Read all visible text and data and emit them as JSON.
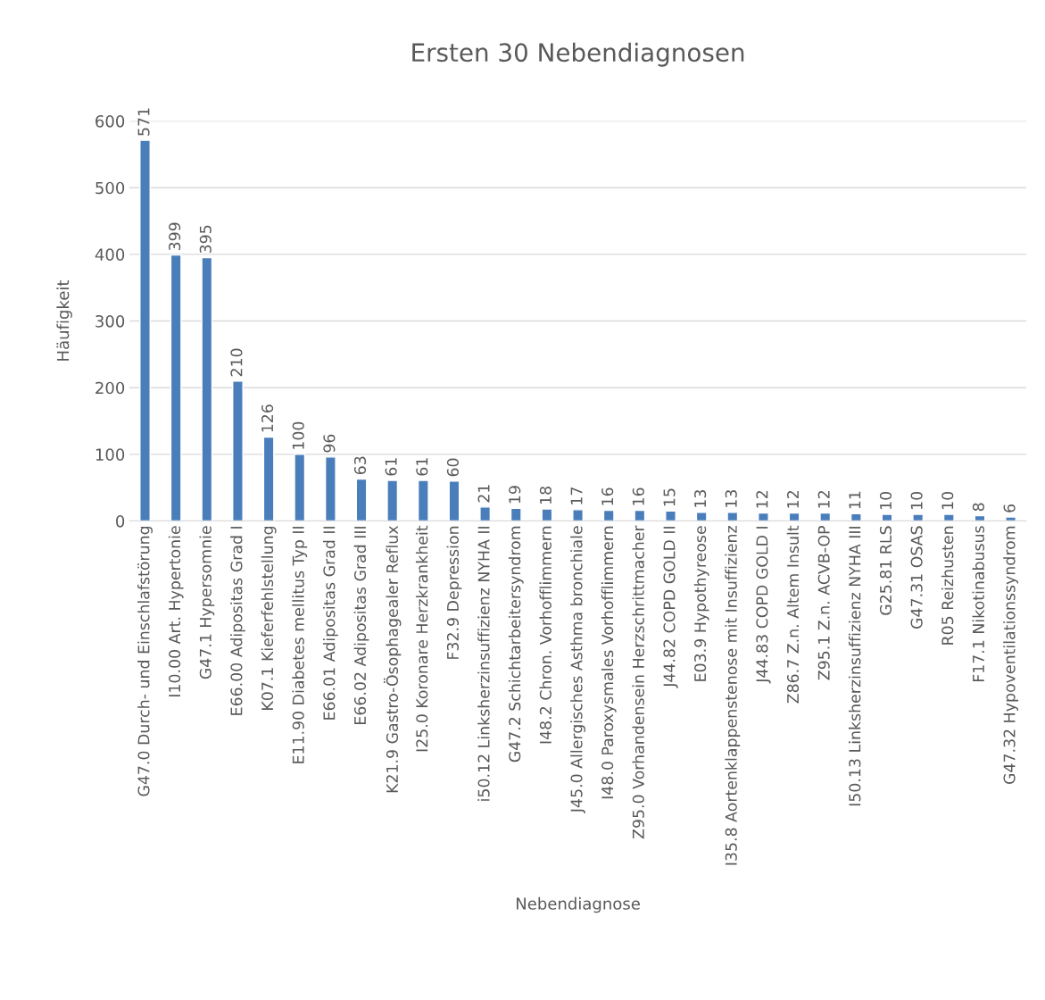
{
  "chart_data": {
    "type": "bar",
    "title": "Ersten 30 Nebendiagnosen",
    "xlabel": "Nebendiagnose",
    "ylabel": "Häufigkeit",
    "categories": [
      "G47.0 Durch- und Einschlafstörung",
      "I10.00 Art. Hypertonie",
      "G47.1 Hypersomnie",
      "E66.00 Adipositas Grad I",
      "K07.1 Kieferfehlstellung",
      "E11.90 Diabetes mellitus Typ II",
      "E66.01 Adipositas Grad II",
      "E66.02 Adipositas Grad III",
      "K21.9 Gastro-Ösophagealer Reflux",
      "I25.0 Koronare Herzkrankheit",
      "F32.9 Depression",
      "i50.12 Linksherzinsuffizienz NYHA II",
      "G47.2 Schichtarbeitersyndrom",
      "I48.2 Chron. Vorhofflimmern",
      "J45.0 Allergisches Asthma bronchiale",
      "I48.0 Paroxysmales Vorhofflimmern",
      "Z95.0 Vorhandensein Herzschrittmacher",
      "J44.82 COPD GOLD II",
      "E03.9 Hypothyreose",
      "I35.8 Aortenklappenstenose mit Insuffizienz",
      "J44.83 COPD GOLD I",
      "Z86.7 Z.n. Altem Insult",
      "Z95.1 Z.n. ACVB-OP",
      "I50.13 Linksherzinsuffizienz NYHA III",
      "G25.81 RLS",
      "G47.31 OSAS",
      "R05 Reizhusten",
      "F17.1 Nikotinabusus",
      "G47.32 Hypoventilationssyndrom"
    ],
    "values": [
      571,
      399,
      395,
      210,
      126,
      100,
      96,
      63,
      61,
      61,
      60,
      21,
      19,
      18,
      17,
      16,
      16,
      15,
      13,
      13,
      12,
      12,
      12,
      11,
      10,
      10,
      10,
      8,
      6
    ],
    "color": "#4a7ebb",
    "ylim": [
      0,
      600
    ],
    "yticks": [
      0,
      100,
      200,
      300,
      400,
      500,
      600
    ],
    "grid": "y",
    "data_labels": true
  }
}
